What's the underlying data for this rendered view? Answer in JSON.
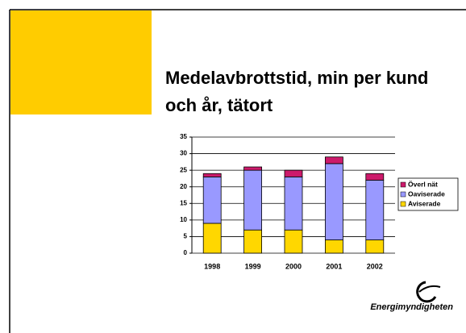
{
  "chart_data": {
    "type": "stacked_bar",
    "title": "Medelavbrottstid, min per kund och år, tätort",
    "categories": [
      "1998",
      "1999",
      "2000",
      "2001",
      "2002"
    ],
    "series": [
      {
        "name": "Aviserade",
        "color": "#ffd700",
        "values": [
          9,
          7,
          7,
          4,
          4
        ]
      },
      {
        "name": "Oaviserade",
        "color": "#9999ff",
        "values": [
          14,
          18,
          16,
          23,
          18
        ]
      },
      {
        "name": "Överl nät",
        "color": "#cc1a6b",
        "values": [
          1,
          1,
          2,
          2,
          2
        ]
      }
    ],
    "ylim": [
      0,
      35
    ],
    "yticks": [
      0,
      5,
      10,
      15,
      20,
      25,
      30,
      35
    ],
    "grid": true,
    "legend": "right",
    "logo": "Energimyndigheten"
  }
}
